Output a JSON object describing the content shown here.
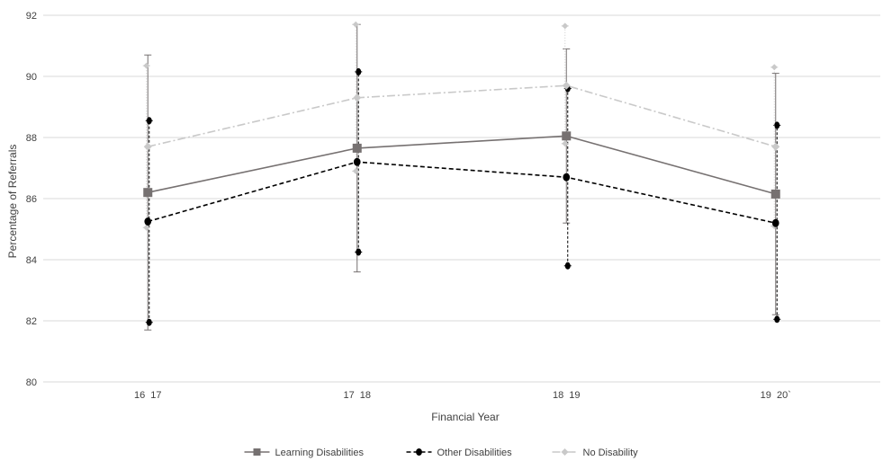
{
  "chart_data": {
    "type": "line",
    "categories": [
      "16  17",
      "17  18",
      "18  19",
      "19  20`"
    ],
    "xlabel": "Financial Year",
    "ylabel": "Percentage of Referrals",
    "ylim": [
      80,
      92
    ],
    "yticks": [
      80,
      82,
      84,
      86,
      88,
      90,
      92
    ],
    "grid": true,
    "legend_position": "bottom",
    "series": [
      {
        "name": "Learning Disabilities",
        "values": [
          86.2,
          87.65,
          88.05,
          86.15
        ],
        "error_low": [
          81.7,
          83.6,
          85.2,
          82.2
        ],
        "error_high": [
          90.7,
          91.7,
          90.9,
          90.1
        ],
        "color": "#767171",
        "marker": "square",
        "line": "solid"
      },
      {
        "name": "Other Disabilities",
        "values": [
          85.25,
          87.2,
          86.7,
          85.2
        ],
        "error_low": [
          81.95,
          84.25,
          83.8,
          82.05
        ],
        "error_high": [
          88.55,
          90.15,
          89.6,
          88.4
        ],
        "color": "#000000",
        "marker": "circle",
        "line": "dashed"
      },
      {
        "name": "No Disability",
        "values": [
          87.7,
          89.3,
          89.7,
          87.7
        ],
        "error_low": [
          85.05,
          86.9,
          87.8,
          85.1
        ],
        "error_high": [
          90.35,
          91.7,
          91.65,
          90.3
        ],
        "color": "#C9C9C9",
        "marker": "diamond",
        "line": "dashdot"
      }
    ]
  }
}
